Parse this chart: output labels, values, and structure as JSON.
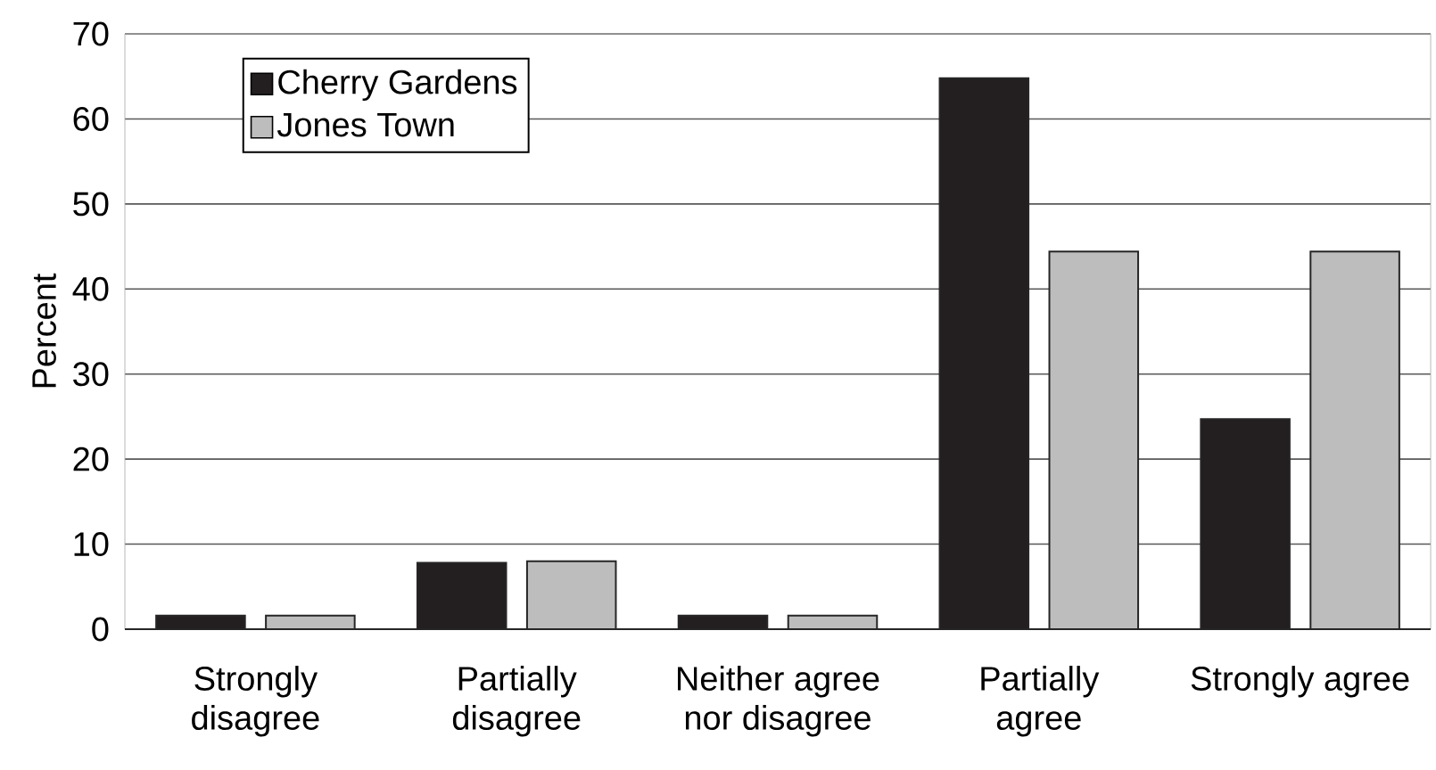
{
  "chart_data": {
    "type": "bar",
    "ylabel": "Percent",
    "categories": [
      "Strongly disagree",
      "Partially disagree",
      "Neither agree nor disagree",
      "Partially agree",
      "Strongly agree"
    ],
    "series": [
      {
        "name": "Cherry Gardens",
        "color": "#231f20",
        "values": [
          1.6,
          7.8,
          1.6,
          64.8,
          24.7
        ]
      },
      {
        "name": "Jones Town",
        "color": "#bdbdbd",
        "values": [
          1.6,
          8.0,
          1.6,
          44.4,
          44.4
        ]
      }
    ],
    "ylim": [
      0,
      70
    ],
    "yticks": [
      0,
      10,
      20,
      30,
      40,
      50,
      60,
      70
    ],
    "grid": "y",
    "legend": "top left"
  }
}
